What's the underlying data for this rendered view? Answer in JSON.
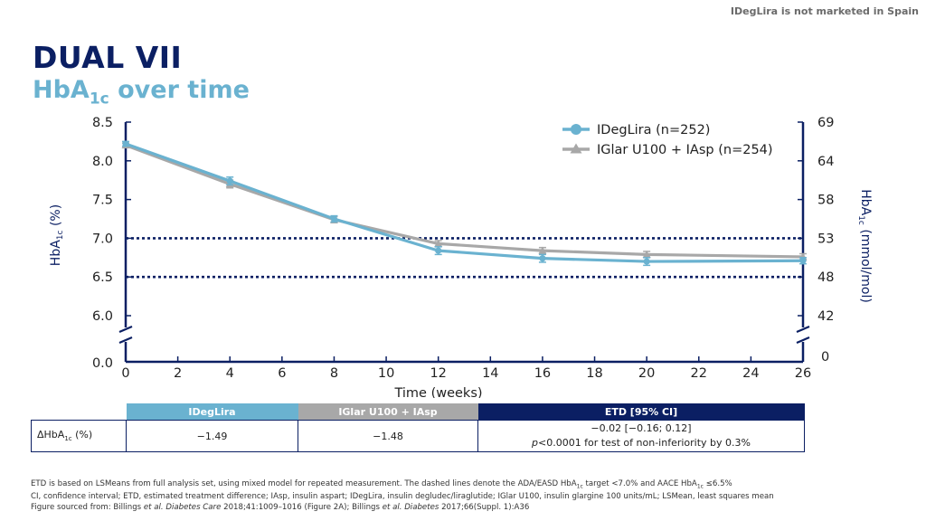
{
  "disclaimer": "IDegLira is not marketed in Spain",
  "title": "DUAL VII",
  "subtitle": {
    "main": "HbA",
    "sub": "1c",
    "rest": " over time"
  },
  "chart_data": {
    "type": "line",
    "xlabel": "Time (weeks)",
    "ylabel_left": {
      "main": "HbA",
      "sub": "1c",
      "rest": " (%)"
    },
    "ylabel_right": {
      "main": "HbA",
      "sub": "1c",
      "rest": " (mmol/mol)"
    },
    "x_ticks": [
      0,
      2,
      4,
      6,
      8,
      10,
      12,
      14,
      16,
      18,
      20,
      22,
      24,
      26
    ],
    "xlim": [
      0,
      26
    ],
    "y_left_ticks": [
      "8.5",
      "8.0",
      "7.5",
      "7.0",
      "6.5",
      "6.0"
    ],
    "y_left_values": [
      8.5,
      8.0,
      7.5,
      7.0,
      6.5,
      6.0
    ],
    "y_left_zero": "0.0",
    "y_right_ticks": [
      "69",
      "64",
      "58",
      "53",
      "48",
      "42"
    ],
    "y_right_zero": "0",
    "ylim": [
      6.0,
      8.5
    ],
    "axis_break": true,
    "reference_lines": [
      7.0,
      6.5
    ],
    "series": [
      {
        "name": "IDegLira (n=252)",
        "color": "#6ab2d0",
        "marker": "circle",
        "x": [
          0,
          4,
          8,
          12,
          16,
          20,
          26
        ],
        "y": [
          8.22,
          7.74,
          7.25,
          6.84,
          6.74,
          6.7,
          6.71
        ],
        "err": [
          0.03,
          0.05,
          0.04,
          0.05,
          0.05,
          0.05,
          0.04
        ]
      },
      {
        "name": "IGlar U100 + IAsp (n=254)",
        "color": "#a8a8a8",
        "marker": "triangle",
        "x": [
          0,
          4,
          8,
          12,
          16,
          20,
          26
        ],
        "y": [
          8.2,
          7.7,
          7.24,
          6.93,
          6.84,
          6.79,
          6.76
        ],
        "err": [
          0.03,
          0.05,
          0.04,
          0.04,
          0.04,
          0.04,
          0.04
        ]
      }
    ]
  },
  "table": {
    "headers": [
      "IDegLira",
      "IGlar U100 + IAsp",
      "ETD [95% CI]"
    ],
    "row_label": {
      "main": "ΔHbA",
      "sub": "1c",
      "rest": " (%)"
    },
    "idegliro_value": "−1.49",
    "iglar_value": "−1.48",
    "etd_line1": "−0.02 [−0.16; 0.12]",
    "etd_line2_italic": "p",
    "etd_line2_rest": "<0.0001 for test of non-inferiority by 0.3%"
  },
  "footnotes": {
    "line1_a": "ETD is based on LSMeans from full analysis set, using mixed model for repeated measurement. The dashed lines denote the ADA/EASD HbA",
    "line1_sub1": "1c",
    "line1_b": " target <7.0% and AACE HbA",
    "line1_sub2": "1c",
    "line1_c": " ≤6.5%",
    "line2": "CI, confidence interval; ETD, estimated treatment difference; IAsp, insulin aspart; IDegLira, insulin degludec/liraglutide; IGlar U100, insulin glargine 100 units/mL; LSMean, least squares mean",
    "line3_a": "Figure sourced from: Billings ",
    "line3_i1": "et al. Diabetes Care",
    "line3_b": " 2018;41:1009–1016 (Figure 2A); Billings ",
    "line3_i2": "et al. Diabetes",
    "line3_c": " 2017;66(Suppl. 1):A36"
  }
}
